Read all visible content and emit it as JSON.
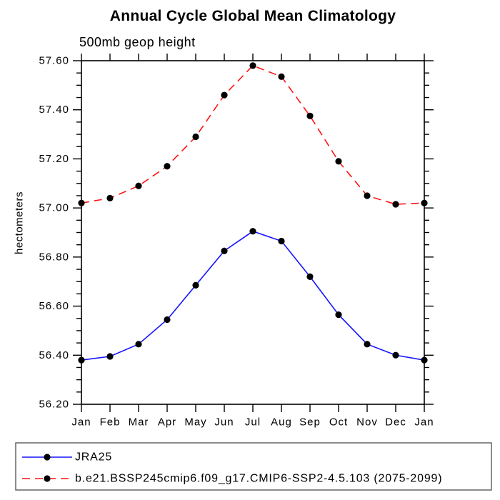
{
  "page": {
    "background": "#ffffff"
  },
  "chart_data": {
    "type": "line",
    "title": "Annual Cycle Global Mean Climatology",
    "subtitle": "500mb geop height",
    "ylabel": "hectometers",
    "xlabel": "",
    "categories": [
      "Jan",
      "Feb",
      "Mar",
      "Apr",
      "May",
      "Jun",
      "Jul",
      "Aug",
      "Sep",
      "Oct",
      "Nov",
      "Dec",
      "Jan"
    ],
    "ylim": [
      56.2,
      57.6
    ],
    "ytick_major_step": 0.2,
    "ytick_minor_step": 0.05,
    "ytick_labels": [
      "56.20",
      "56.40",
      "56.60",
      "56.80",
      "57.00",
      "57.20",
      "57.40",
      "57.60"
    ],
    "grid": false,
    "legend_position": "bottom-box",
    "series": [
      {
        "name": "JRA25",
        "color": "#1414ff",
        "line_style": "solid",
        "marker": "circle",
        "marker_color": "#000000",
        "values": [
          56.38,
          56.395,
          56.445,
          56.545,
          56.685,
          56.825,
          56.905,
          56.865,
          56.72,
          56.565,
          56.445,
          56.4,
          56.38
        ]
      },
      {
        "name": "b.e21.BSSP245cmip6.f09_g17.CMIP6-SSP2-4.5.103 (2075-2099)",
        "color": "#ff1414",
        "line_style": "dashed",
        "marker": "circle",
        "marker_color": "#000000",
        "values": [
          57.02,
          57.04,
          57.09,
          57.17,
          57.29,
          57.46,
          57.58,
          57.535,
          57.375,
          57.19,
          57.05,
          57.015,
          57.02
        ]
      }
    ]
  },
  "colors": {
    "axis": "#000000",
    "tick": "#000000",
    "legend_border": "#5a5a5a",
    "text": "#000000"
  }
}
